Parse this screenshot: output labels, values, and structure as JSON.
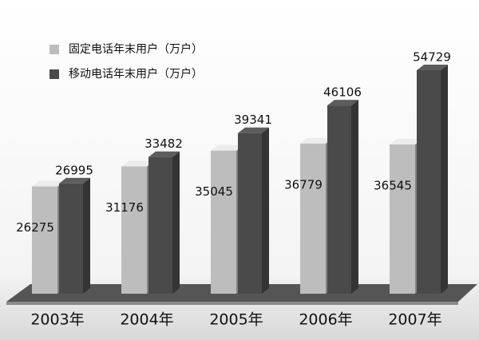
{
  "chart_data": {
    "type": "bar3d",
    "categories": [
      "2003年",
      "2004年",
      "2005年",
      "2006年",
      "2007年"
    ],
    "series": [
      {
        "name": "固定电话年末用户（万户）",
        "color": "#bdbdbd",
        "values": [
          26275,
          31176,
          35045,
          36779,
          36545
        ]
      },
      {
        "name": "移动电话年末用户（万户）",
        "color": "#4a4a4a",
        "values": [
          26995,
          33482,
          39341,
          46106,
          54729
        ]
      }
    ]
  }
}
